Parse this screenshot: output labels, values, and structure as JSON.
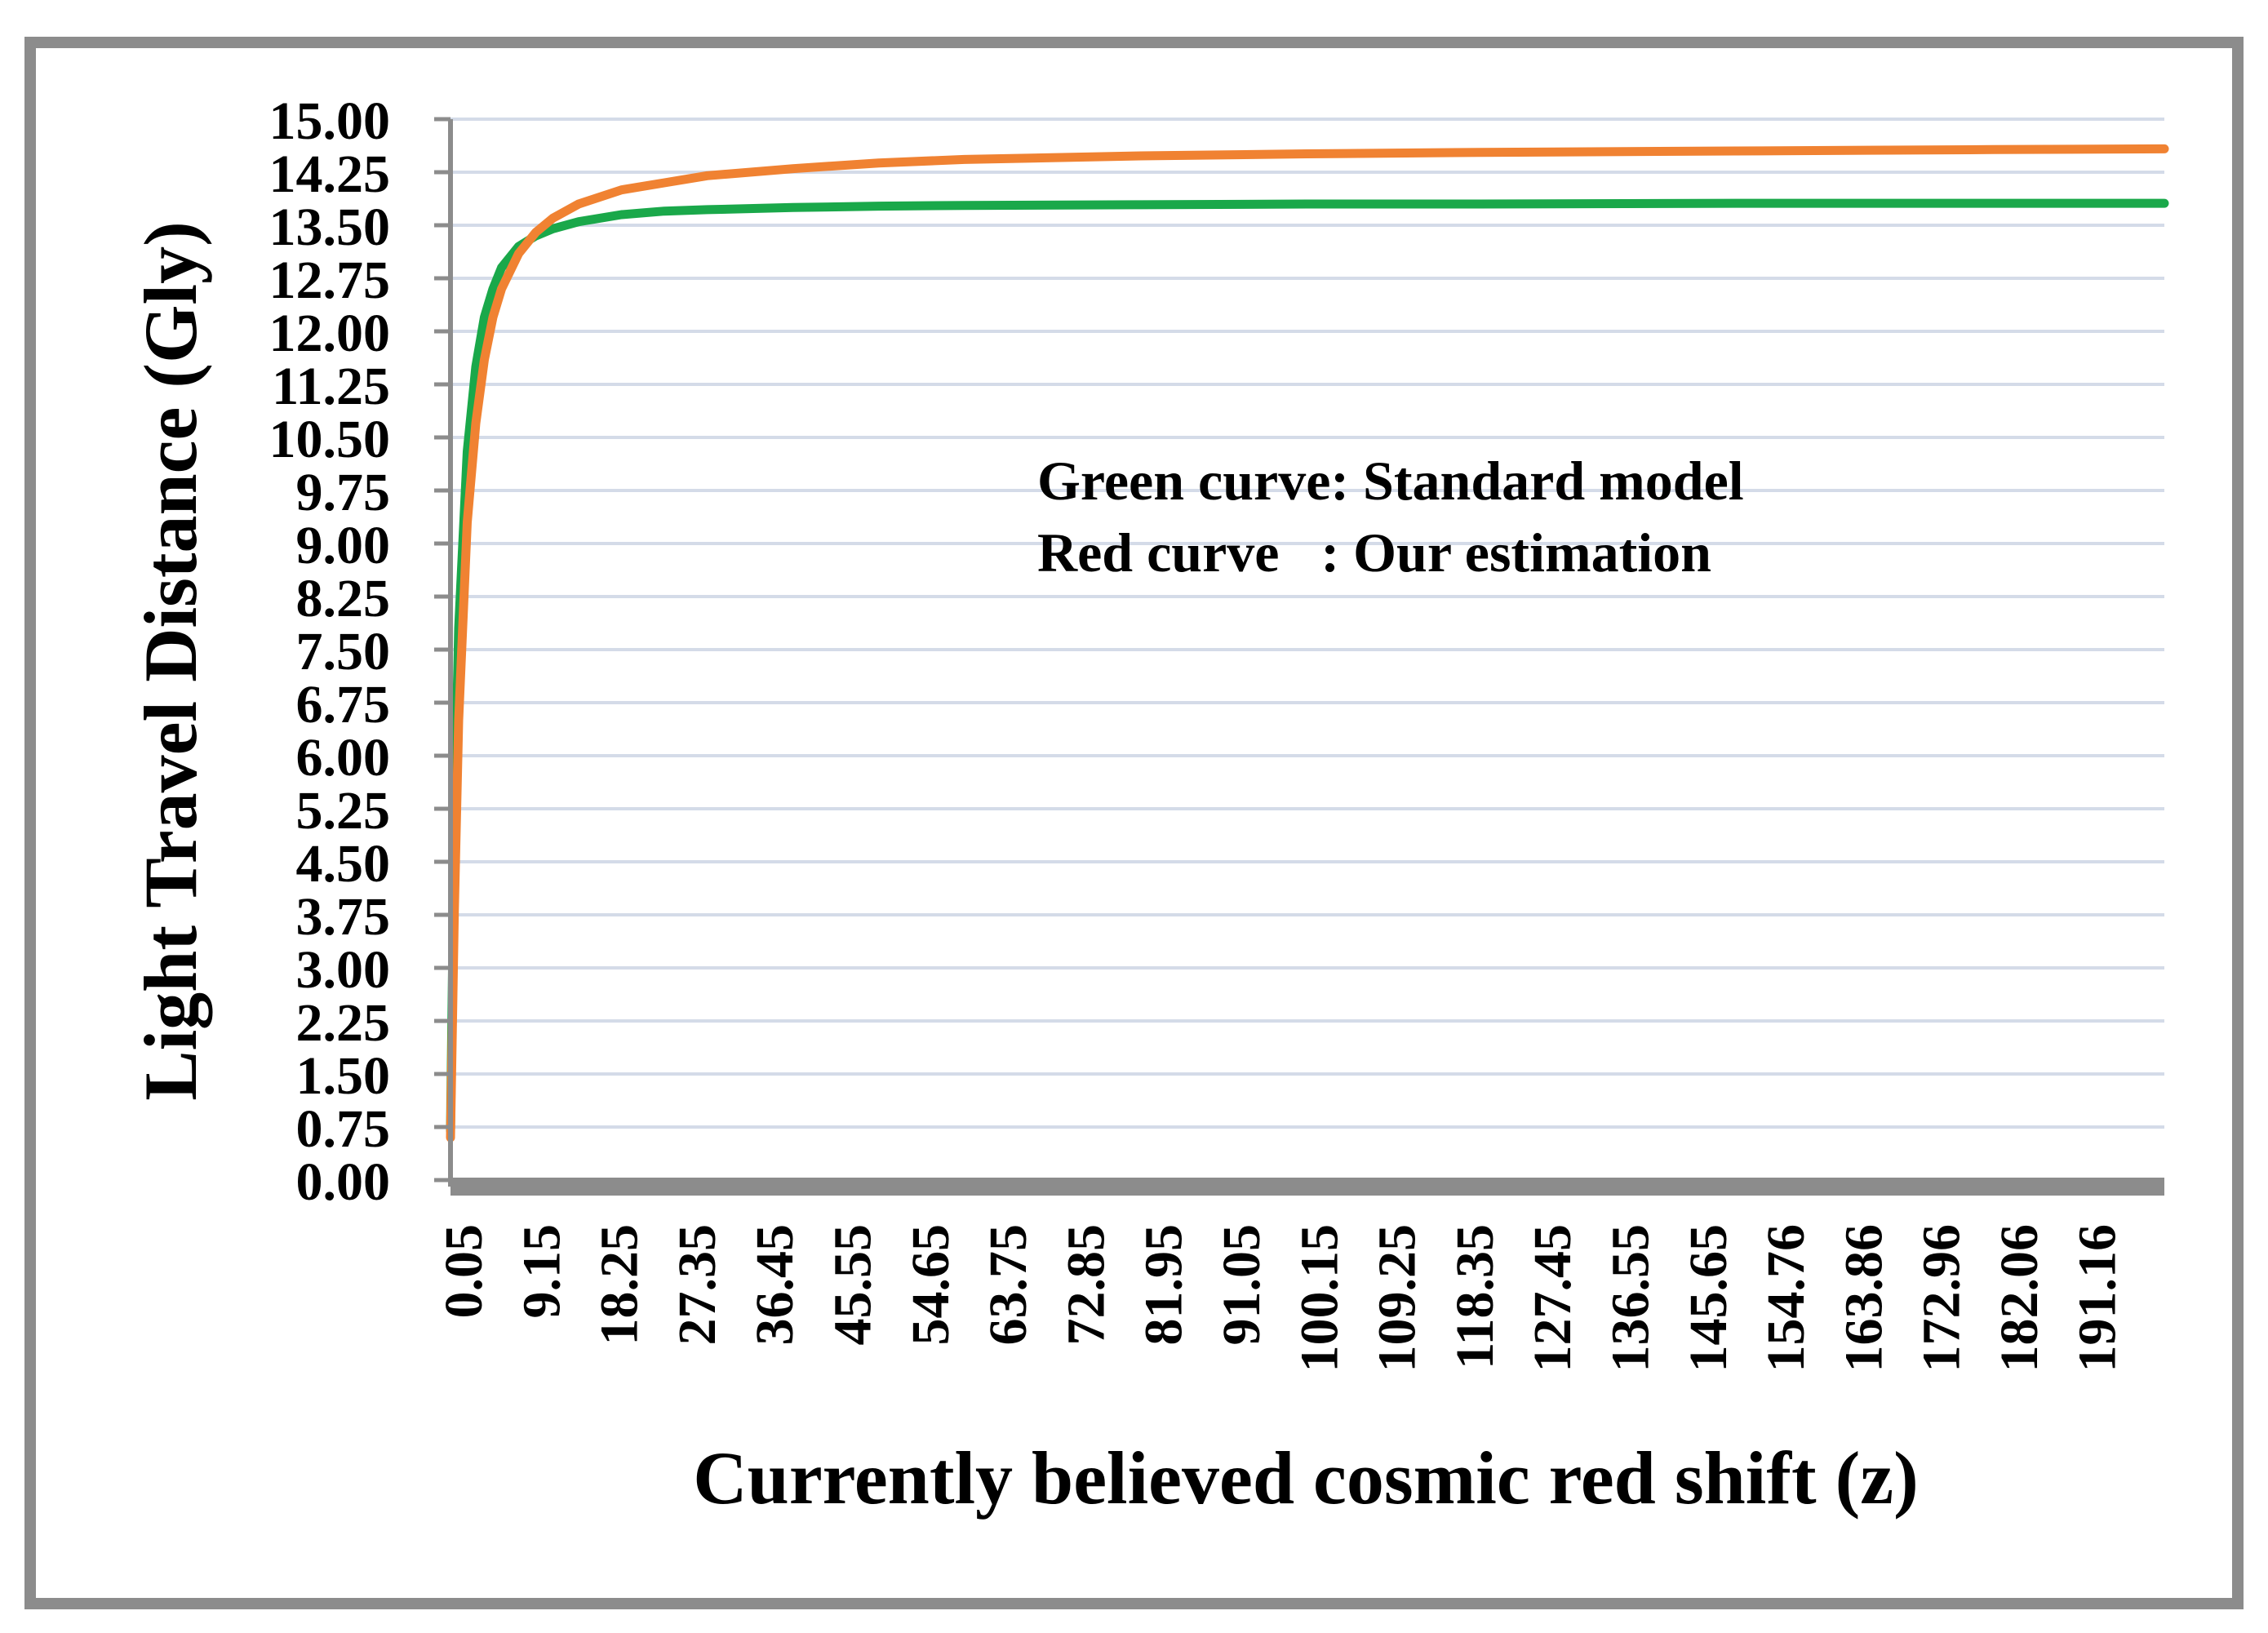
{
  "chart_data": {
    "type": "line",
    "xlabel": "Currently believed cosmic red shift (z)",
    "ylabel": "Light Travel Distance (Gly)",
    "ylim": [
      0,
      15
    ],
    "yticks": [
      "0.00",
      "0.75",
      "1.50",
      "2.25",
      "3.00",
      "3.75",
      "4.50",
      "5.25",
      "6.00",
      "6.75",
      "7.50",
      "8.25",
      "9.00",
      "9.75",
      "10.50",
      "11.25",
      "12.00",
      "12.75",
      "13.50",
      "14.25",
      "15.00"
    ],
    "xlim": [
      0.05,
      200
    ],
    "xticks": [
      "0.05",
      "9.15",
      "18.25",
      "27.35",
      "36.45",
      "45.55",
      "54.65",
      "63.75",
      "72.85",
      "81.95",
      "91.05",
      "100.15",
      "109.25",
      "118.35",
      "127.45",
      "136.55",
      "145.65",
      "154.76",
      "163.86",
      "172.96",
      "182.06",
      "191.16"
    ],
    "grid": true,
    "annotations": [
      "Green curve: Standard model",
      "Red curve   : Our estimation"
    ],
    "series": [
      {
        "color": "#1aa84a",
        "x": [
          0.05,
          0.5,
          1,
          2,
          3,
          4,
          5,
          6,
          8,
          10,
          12,
          15,
          20,
          25,
          30,
          40,
          50,
          60,
          80,
          100,
          120,
          150,
          180,
          200
        ],
        "y": [
          0.7,
          5.0,
          7.8,
          10.3,
          11.5,
          12.2,
          12.6,
          12.9,
          13.2,
          13.35,
          13.45,
          13.55,
          13.65,
          13.7,
          13.72,
          13.75,
          13.77,
          13.78,
          13.79,
          13.8,
          13.8,
          13.81,
          13.81,
          13.81
        ]
      },
      {
        "color": "#f08232",
        "x": [
          0.05,
          0.5,
          1,
          2,
          3,
          4,
          5,
          6,
          8,
          10,
          12,
          15,
          20,
          25,
          30,
          40,
          50,
          60,
          80,
          100,
          120,
          150,
          180,
          200
        ],
        "y": [
          0.6,
          3.8,
          6.5,
          9.3,
          10.7,
          11.6,
          12.2,
          12.6,
          13.1,
          13.4,
          13.6,
          13.8,
          14.0,
          14.1,
          14.2,
          14.3,
          14.38,
          14.43,
          14.48,
          14.51,
          14.53,
          14.55,
          14.57,
          14.58
        ]
      }
    ]
  }
}
